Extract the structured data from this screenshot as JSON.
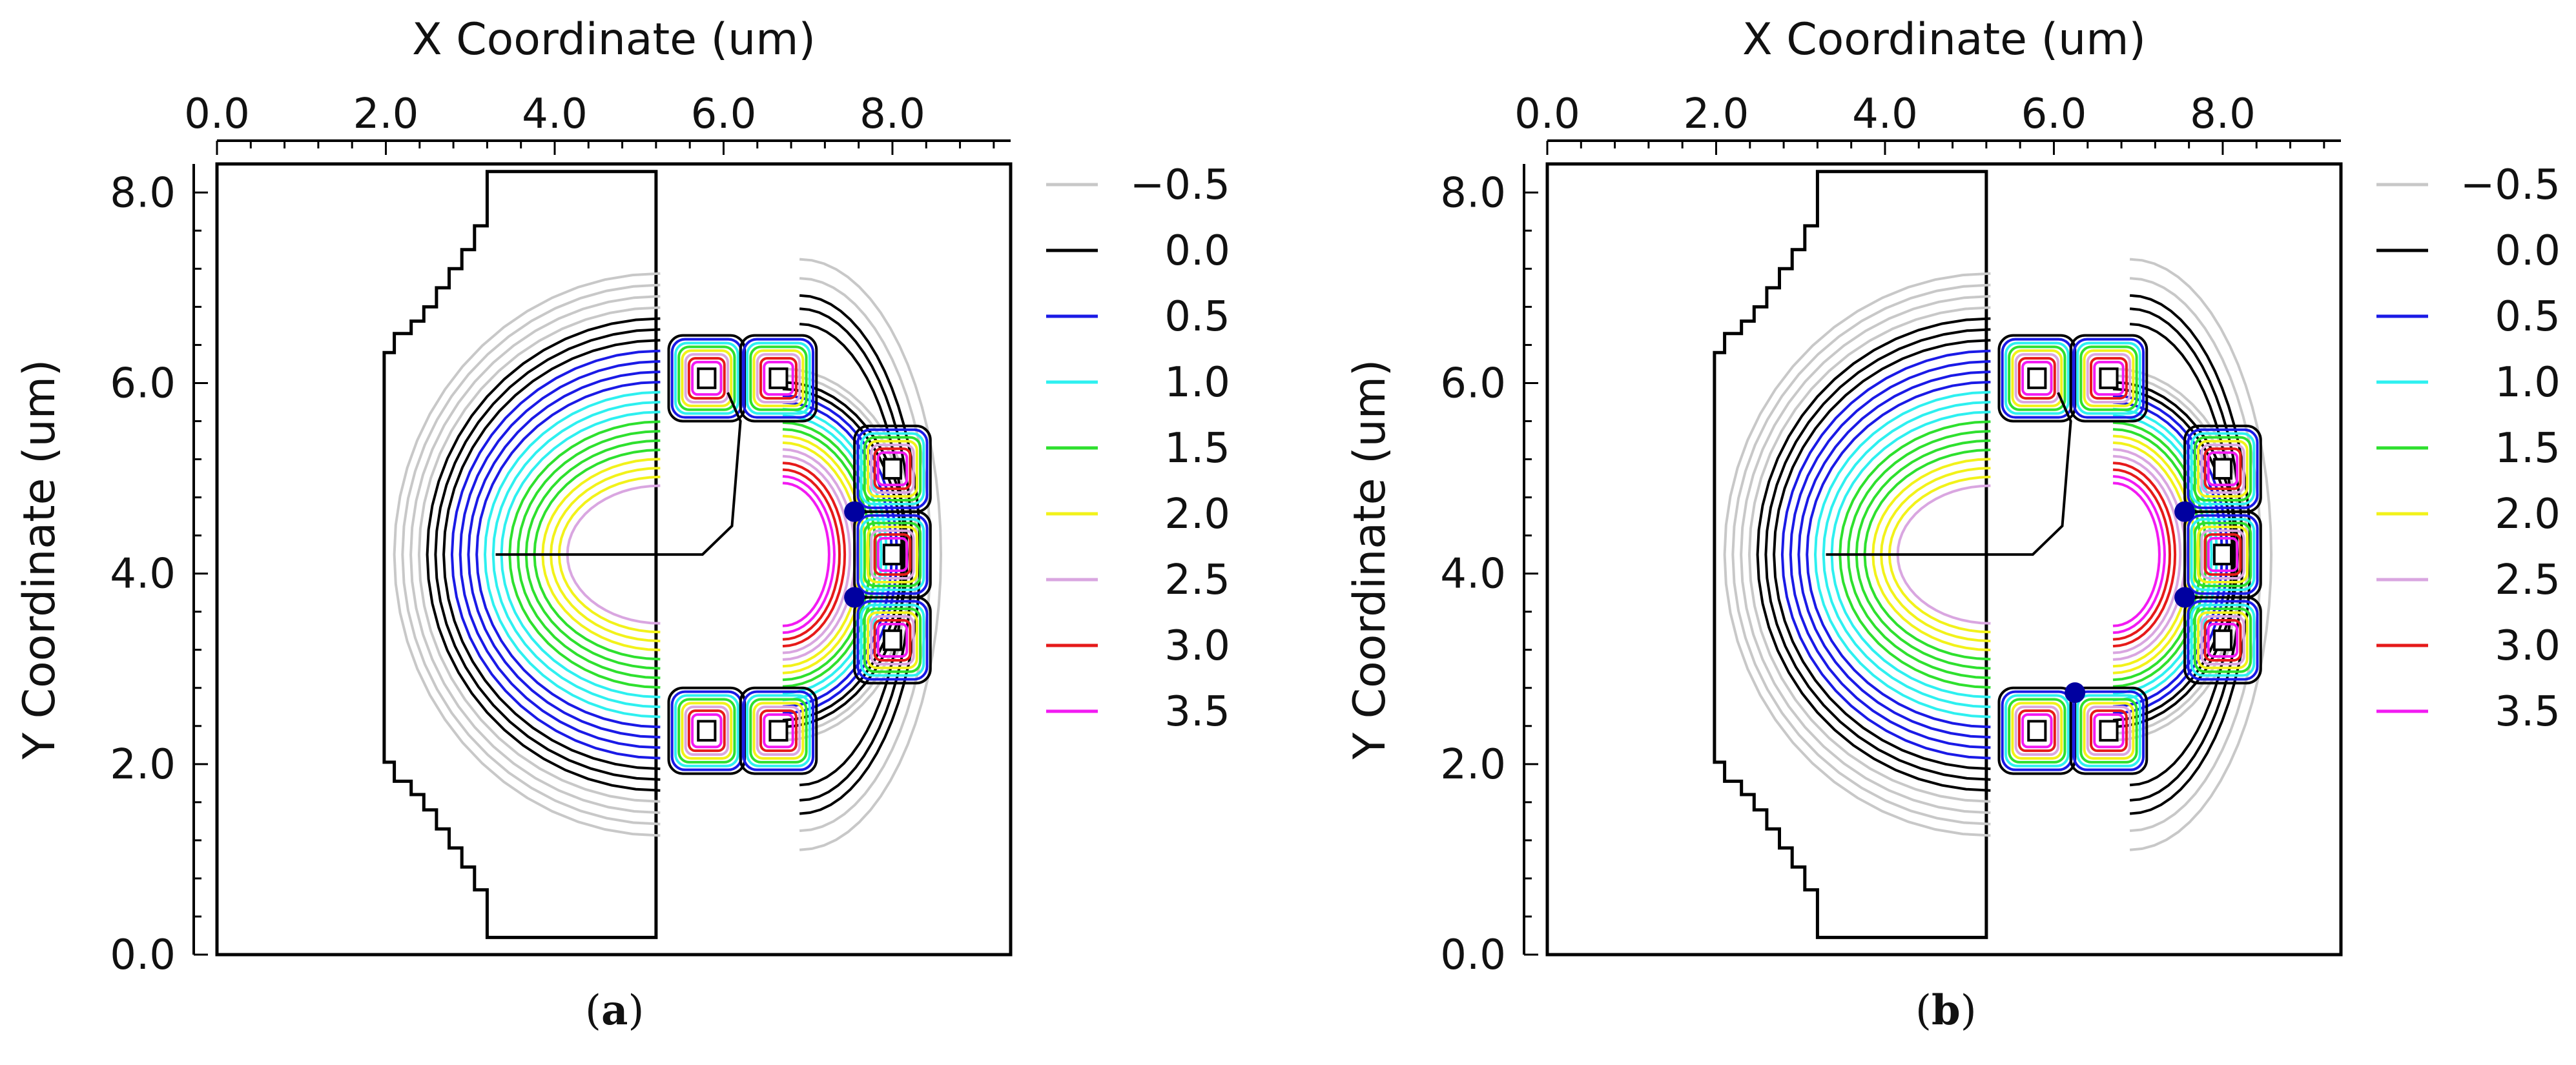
{
  "chart_data": [
    {
      "type": "contour",
      "panel_label": "a",
      "xlabel": "X Coordinate (um)",
      "ylabel": "Y Coordinate (um)",
      "xlim": [
        0.0,
        9.4
      ],
      "ylim": [
        0.0,
        8.3
      ],
      "xticks": [
        "0.0",
        "2.0",
        "4.0",
        "6.0",
        "8.0"
      ],
      "yticks": [
        "0.0",
        "2.0",
        "4.0",
        "6.0",
        "8.0"
      ],
      "legend_position": "right",
      "contour_levels": [
        {
          "label": "−0.5",
          "value": -0.5,
          "color": "#c8c8c8"
        },
        {
          "label": "0.0",
          "value": 0.0,
          "color": "#000000"
        },
        {
          "label": "0.5",
          "value": 0.5,
          "color": "#1a1ae6"
        },
        {
          "label": "1.0",
          "value": 1.0,
          "color": "#2ef0f0"
        },
        {
          "label": "1.5",
          "value": 1.5,
          "color": "#2ee02e"
        },
        {
          "label": "2.0",
          "value": 2.0,
          "color": "#f2f21a"
        },
        {
          "label": "2.5",
          "value": 2.5,
          "color": "#d9a6e0"
        },
        {
          "label": "3.0",
          "value": 3.0,
          "color": "#e61a1a"
        },
        {
          "label": "3.5",
          "value": 3.5,
          "color": "#f21af2"
        }
      ],
      "center_dots": [
        3.75,
        4.65
      ]
    },
    {
      "type": "contour",
      "panel_label": "b",
      "xlabel": "X Coordinate (um)",
      "ylabel": "Y Coordinate (um)",
      "xlim": [
        0.0,
        9.4
      ],
      "ylim": [
        0.0,
        8.3
      ],
      "xticks": [
        "0.0",
        "2.0",
        "4.0",
        "6.0",
        "8.0"
      ],
      "yticks": [
        "0.0",
        "2.0",
        "4.0",
        "6.0",
        "8.0"
      ],
      "legend_position": "right",
      "contour_levels": [
        {
          "label": "−0.5",
          "value": -0.5,
          "color": "#c8c8c8"
        },
        {
          "label": "0.0",
          "value": 0.0,
          "color": "#000000"
        },
        {
          "label": "0.5",
          "value": 0.5,
          "color": "#1a1ae6"
        },
        {
          "label": "1.0",
          "value": 1.0,
          "color": "#2ef0f0"
        },
        {
          "label": "1.5",
          "value": 1.5,
          "color": "#2ee02e"
        },
        {
          "label": "2.0",
          "value": 2.0,
          "color": "#f2f21a"
        },
        {
          "label": "2.5",
          "value": 2.5,
          "color": "#d9a6e0"
        },
        {
          "label": "3.0",
          "value": 3.0,
          "color": "#e61a1a"
        },
        {
          "label": "3.5",
          "value": 3.5,
          "color": "#f21af2"
        }
      ],
      "center_dots": [
        3.75,
        4.65,
        2.75
      ]
    }
  ]
}
